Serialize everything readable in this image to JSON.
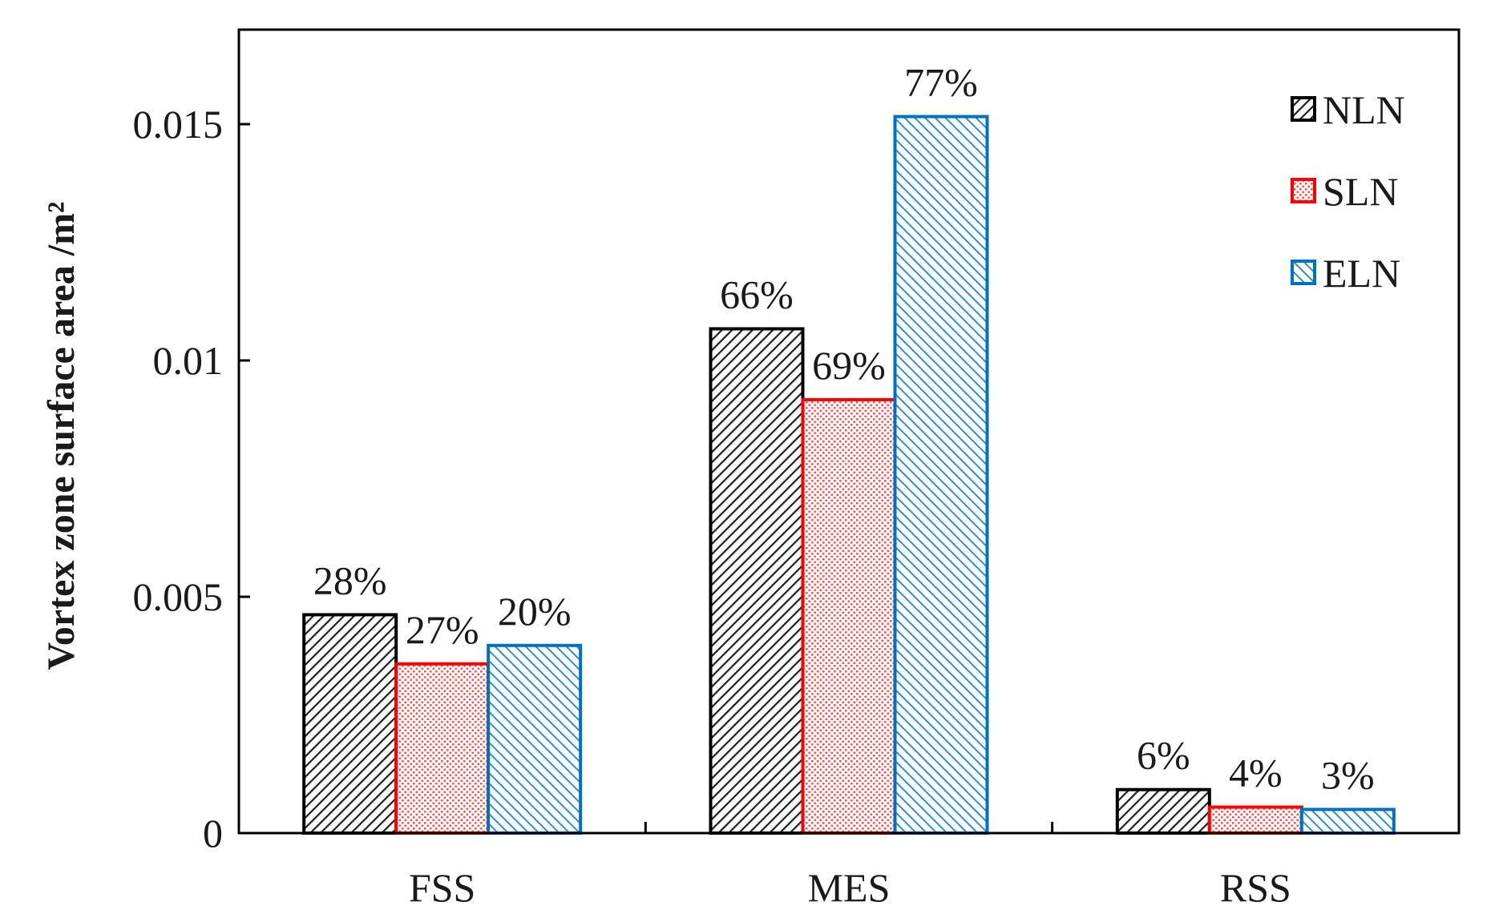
{
  "chart_data": {
    "type": "bar",
    "title": "",
    "xlabel": "",
    "ylabel": "Vortex zone surface area /m²",
    "ylim": [
      0,
      0.017
    ],
    "yticks": [
      0,
      0.005,
      0.01,
      0.015
    ],
    "ytick_labels": [
      "0",
      "0.005",
      "0.01",
      "0.015"
    ],
    "categories": [
      "FSS",
      "MES",
      "RSS"
    ],
    "grid": false,
    "legend_position": "top-right",
    "series": [
      {
        "name": "NLN",
        "color": "#000000",
        "pattern": "hatch-diagonal-dense",
        "values": [
          0.00462,
          0.01067,
          0.00092
        ],
        "labels": [
          "28%",
          "66%",
          "6%"
        ]
      },
      {
        "name": "SLN",
        "color": "#ff0000",
        "pattern": "dots",
        "values": [
          0.00358,
          0.00917,
          0.00055
        ],
        "labels": [
          "27%",
          "69%",
          "4%"
        ]
      },
      {
        "name": "ELN",
        "color": "#0070c0",
        "pattern": "hatch-diagonal-reverse",
        "values": [
          0.00397,
          0.01516,
          0.0005
        ],
        "labels": [
          "20%",
          "77%",
          "3%"
        ]
      }
    ]
  }
}
